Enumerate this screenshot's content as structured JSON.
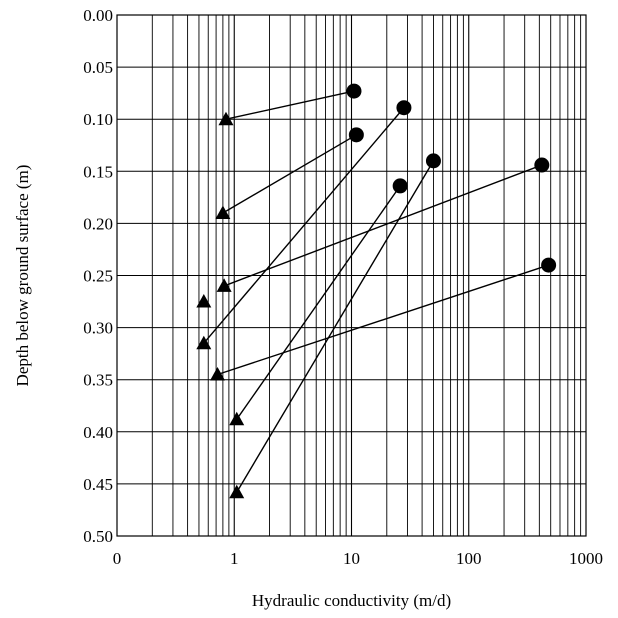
{
  "chart_data": {
    "type": "scatter",
    "title": "",
    "xlabel": "Hydraulic conductivity (m/d)",
    "ylabel": "Depth below ground surface (m)",
    "x_scale": "log",
    "xlim": [
      0.1,
      1000
    ],
    "ylim": [
      0.0,
      0.5
    ],
    "y_inverted": true,
    "grid": true,
    "x_ticks": [
      {
        "value": 0.1,
        "label": "0"
      },
      {
        "value": 1,
        "label": "1"
      },
      {
        "value": 10,
        "label": "10"
      },
      {
        "value": 100,
        "label": "100"
      },
      {
        "value": 1000,
        "label": "1000"
      }
    ],
    "y_ticks": [
      {
        "value": 0.0,
        "label": "0.00"
      },
      {
        "value": 0.05,
        "label": "0.05"
      },
      {
        "value": 0.1,
        "label": "0.10"
      },
      {
        "value": 0.15,
        "label": "0.15"
      },
      {
        "value": 0.2,
        "label": "0.20"
      },
      {
        "value": 0.25,
        "label": "0.25"
      },
      {
        "value": 0.3,
        "label": "0.30"
      },
      {
        "value": 0.35,
        "label": "0.35"
      },
      {
        "value": 0.4,
        "label": "0.40"
      },
      {
        "value": 0.45,
        "label": "0.45"
      },
      {
        "value": 0.5,
        "label": "0.50"
      }
    ],
    "pairs": [
      {
        "triangle": {
          "x": 0.85,
          "y": 0.1
        },
        "circle": {
          "x": 10.5,
          "y": 0.073
        }
      },
      {
        "triangle": {
          "x": 0.8,
          "y": 0.19
        },
        "circle": {
          "x": 11,
          "y": 0.115
        }
      },
      {
        "triangle": {
          "x": 0.82,
          "y": 0.26
        },
        "circle": {
          "x": 420,
          "y": 0.144
        }
      },
      {
        "triangle": {
          "x": 0.55,
          "y": 0.315
        },
        "circle": {
          "x": 28,
          "y": 0.089
        }
      },
      {
        "triangle": {
          "x": 0.72,
          "y": 0.345
        },
        "circle": {
          "x": 480,
          "y": 0.24
        }
      },
      {
        "triangle": {
          "x": 1.05,
          "y": 0.388
        },
        "circle": {
          "x": 26,
          "y": 0.164
        }
      },
      {
        "triangle": {
          "x": 1.05,
          "y": 0.458
        },
        "circle": {
          "x": 50,
          "y": 0.14
        }
      }
    ],
    "unpaired_triangles": [
      {
        "x": 0.55,
        "y": 0.275
      }
    ],
    "colors": {
      "marker": "#000000",
      "line": "#000000",
      "grid": "#000000",
      "background": "#ffffff"
    }
  }
}
